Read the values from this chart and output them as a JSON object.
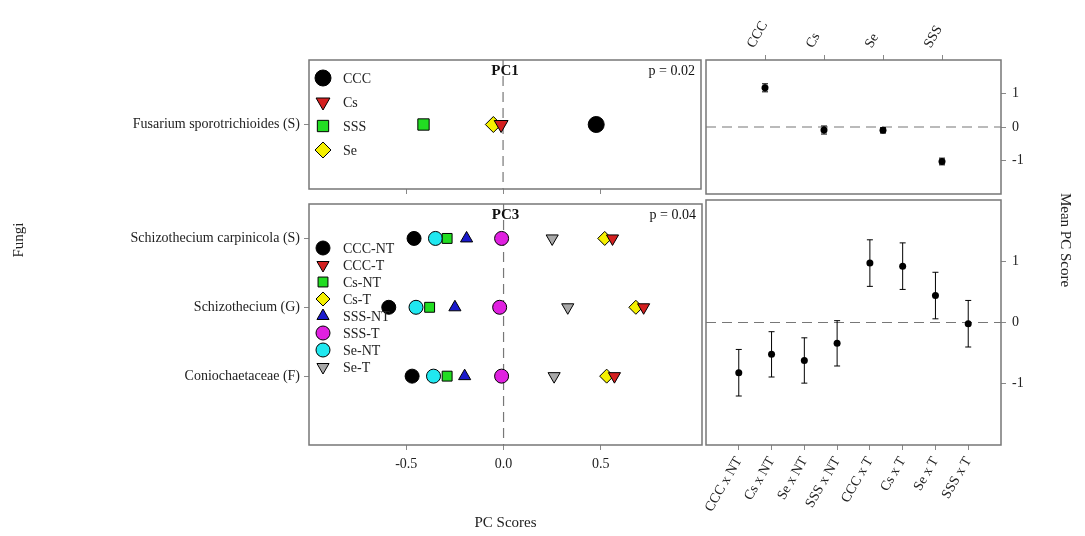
{
  "chart_data": [
    {
      "type": "scatter",
      "orientation": "horizontal",
      "title": "PC1",
      "categories": [
        "Fusarium sporotrichioides (S)"
      ],
      "series": [
        {
          "name": "CCC",
          "color": "#000000",
          "marker": "circle",
          "values": [
            0.48
          ]
        },
        {
          "name": "Cs",
          "color": "#d42020",
          "marker": "triangle_down",
          "values": [
            -0.01
          ]
        },
        {
          "name": "SSS",
          "color": "#22dd22",
          "marker": "square",
          "values": [
            -0.41
          ]
        },
        {
          "name": "Se",
          "color": "#f5f000",
          "marker": "diamond",
          "values": [
            -0.05
          ]
        }
      ],
      "xlim": [
        -1.0,
        1.02
      ],
      "xticks": [
        -0.5,
        0,
        0.5
      ],
      "tick_labels": "y",
      "legend": "top left",
      "annotations": [
        "p = 0.02"
      ],
      "ref_lines": [
        {
          "axis": "x",
          "value": 0,
          "line_style": "dashed"
        }
      ]
    },
    {
      "type": "scatter",
      "orientation": "horizontal",
      "title": "PC3",
      "xlabel": "PC Scores",
      "ylabel": "Fungi",
      "categories": [
        "Schizothecium carpinicola (S)",
        "Schizothecium (G)",
        "Coniochaetaceae (F)"
      ],
      "series": [
        {
          "name": "CCC-NT",
          "color": "#000000",
          "marker": "circle",
          "values": [
            -0.46,
            -0.59,
            -0.47
          ]
        },
        {
          "name": "CCC-T",
          "color": "#d42020",
          "marker": "triangle_down",
          "values": [
            0.56,
            0.72,
            0.57
          ]
        },
        {
          "name": "Cs-NT",
          "color": "#22dd22",
          "marker": "square",
          "values": [
            -0.29,
            -0.38,
            -0.29
          ]
        },
        {
          "name": "Cs-T",
          "color": "#f5f000",
          "marker": "diamond",
          "values": [
            0.52,
            0.68,
            0.53
          ]
        },
        {
          "name": "SSS-NT",
          "color": "#1a1acc",
          "marker": "triangle",
          "values": [
            -0.19,
            -0.25,
            -0.2
          ]
        },
        {
          "name": "SSS-T",
          "color": "#e020e0",
          "marker": "circle",
          "values": [
            -0.01,
            -0.02,
            -0.01
          ]
        },
        {
          "name": "Se-NT",
          "color": "#20e8f0",
          "marker": "circle",
          "values": [
            -0.35,
            -0.45,
            -0.36
          ]
        },
        {
          "name": "Se-T",
          "color": "#a8a8a8",
          "marker": "triangle_down",
          "values": [
            0.25,
            0.33,
            0.26
          ]
        }
      ],
      "xlim": [
        -1.0,
        1.02
      ],
      "xticks": [
        {
          "value": -0.5,
          "label": "-0.5"
        },
        {
          "value": 0,
          "label": "0.0"
        },
        {
          "value": 0.5,
          "label": "0.5"
        }
      ],
      "legend": "top left",
      "annotations": [
        "p = 0.04"
      ],
      "ref_lines": [
        {
          "axis": "x",
          "value": 0,
          "line_style": "dashed"
        }
      ]
    },
    {
      "type": "scatter",
      "categories": [
        "CCC",
        "Cs",
        "Se",
        "SSS"
      ],
      "values": [
        1.17,
        -0.09,
        -0.1,
        -1.03
      ],
      "errors": [
        0.12,
        0.12,
        0.08,
        0.1
      ],
      "color": "#000000",
      "marker": "circle",
      "ylim": [
        -2,
        2
      ],
      "yticks": [
        -1,
        0,
        1
      ],
      "ref_lines": [
        {
          "axis": "y",
          "value": 0,
          "line_style": "dashed"
        }
      ]
    },
    {
      "type": "scatter",
      "ylabel": "Mean PC Score",
      "categories": [
        "CCC x NT",
        "Cs x NT",
        "Se x NT",
        "SSS x NT",
        "CCC x T",
        "Cs x T",
        "Se x T",
        "SSS x T"
      ],
      "values": [
        -0.82,
        -0.52,
        -0.62,
        -0.34,
        0.97,
        0.92,
        0.44,
        -0.02
      ],
      "errors": [
        0.38,
        0.37,
        0.37,
        0.37,
        0.38,
        0.38,
        0.38,
        0.38
      ],
      "color": "#000000",
      "marker": "circle",
      "ylim": [
        -2,
        2
      ],
      "yticks": [
        -1,
        0,
        1
      ],
      "ref_lines": [
        {
          "axis": "y",
          "value": 0,
          "line_style": "dashed"
        }
      ]
    }
  ]
}
